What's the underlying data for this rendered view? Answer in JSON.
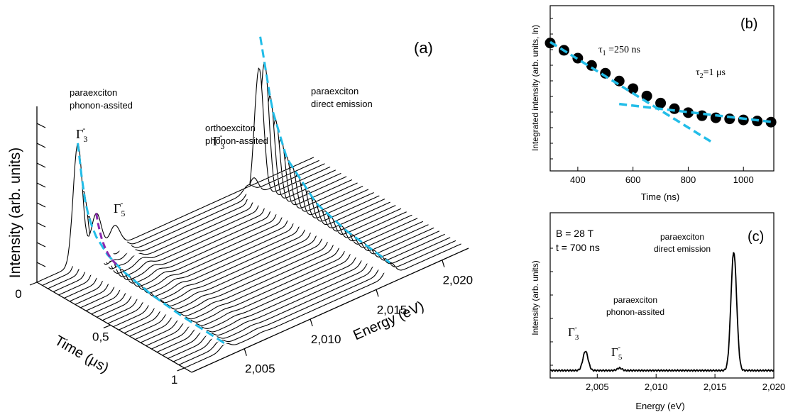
{
  "panel_a": {
    "panel_label": "(a)",
    "ylabel": "Intensity (arb. units)",
    "time_axis_label": "Time (μs)",
    "energy_axis_label": "Energy (eV)",
    "time_ticks": [
      "0",
      "0,5",
      "1"
    ],
    "energy_ticks": [
      "2,005",
      "2,010",
      "2,015",
      "2,020"
    ],
    "annotations": {
      "para_phonon": [
        "paraexciton",
        "phonon-assited"
      ],
      "ortho_phonon": [
        "orthoexciton",
        "phonon-assited"
      ],
      "para_direct": [
        "paraexciton",
        "direct emission"
      ],
      "gamma3_left": "Γ3-",
      "gamma5": "Γ5-",
      "gamma3_ortho": "Γ3-"
    }
  },
  "panel_b": {
    "panel_label": "(b)",
    "ylabel": "Integrated intensity (arb. units, ln)",
    "xlabel": "Time (ns)",
    "x_ticks": [
      "400",
      "600",
      "800",
      "1000"
    ],
    "tau1": "τ1 =250 ns",
    "tau2": "τ2=1 μs"
  },
  "panel_c": {
    "panel_label": "(c)",
    "ylabel": "Intensity (arb. units)",
    "xlabel": "Energy (eV)",
    "x_ticks": [
      "2,005",
      "2,010",
      "2,015",
      "2,020"
    ],
    "conditions": [
      "B = 28 T",
      "t = 700 ns"
    ],
    "peak_label": [
      "paraexciton",
      "direct emission"
    ],
    "phonon_label": [
      "paraexciton",
      "phonon-assited"
    ],
    "gamma3": "Γ3-",
    "gamma5": "Γ5-"
  },
  "colors": {
    "fit": "#22bde8",
    "ortho_fit": "#8a2bb0",
    "line": "#000000"
  },
  "chart_data": [
    {
      "type": "line",
      "panel": "(a)",
      "description_of_axes": "waterfall: x = energy, depth = time, z = intensity",
      "xlabel": "Energy (eV)",
      "ylabel": "Intensity (arb. units)",
      "zlabel": "Time (μs)",
      "xlim": [
        2.001,
        2.022
      ],
      "time_lim": [
        0,
        1.05
      ],
      "n_traces": 28,
      "peaks": [
        {
          "name": "Γ3- paraexciton phonon-assisted",
          "energy": 2.0041
        },
        {
          "name": "Γ5-",
          "energy": 2.0069
        },
        {
          "name": "Γ3- orthoexciton phonon-assisted",
          "energy": 2.0055
        },
        {
          "name": "paraexciton direct emission",
          "energy": 2.0166
        }
      ],
      "peak_height_vs_time": {
        "time_us": [
          0.0,
          0.04,
          0.08,
          0.12,
          0.2,
          0.3,
          0.5,
          0.7,
          1.0
        ],
        "para_phonon_relative": [
          1.0,
          0.6,
          0.42,
          0.32,
          0.22,
          0.16,
          0.1,
          0.07,
          0.05
        ],
        "para_direct_relative": [
          0.0,
          0.05,
          0.12,
          1.0,
          0.6,
          0.35,
          0.18,
          0.12,
          0.08
        ]
      }
    },
    {
      "type": "scatter",
      "panel": "(b)",
      "xlabel": "Time (ns)",
      "ylabel": "Integrated intensity (arb. units, ln)",
      "xlim": [
        300,
        1110
      ],
      "log_y": true,
      "x": [
        300,
        350,
        400,
        450,
        500,
        550,
        600,
        650,
        700,
        750,
        800,
        850,
        900,
        950,
        1000,
        1050,
        1100
      ],
      "y": [
        1.0,
        0.93,
        0.86,
        0.8,
        0.74,
        0.685,
        0.635,
        0.59,
        0.55,
        0.52,
        0.5,
        0.485,
        0.475,
        0.47,
        0.465,
        0.46,
        0.455
      ],
      "series": [
        {
          "name": "τ1 =250 ns",
          "fit": "exponential",
          "x_range": [
            300,
            890
          ]
        },
        {
          "name": "τ2=1 μs",
          "fit": "exponential",
          "x_range": [
            550,
            1110
          ]
        }
      ]
    },
    {
      "type": "line",
      "panel": "(c)",
      "xlabel": "Energy (eV)",
      "ylabel": "Intensity (arb. units)",
      "xlim": [
        2.001,
        2.02
      ],
      "x": [
        2.001,
        2.0025,
        2.0035,
        2.0038,
        2.004,
        2.0042,
        2.0045,
        2.005,
        2.006,
        2.0068,
        2.007,
        2.0072,
        2.008,
        2.01,
        2.012,
        2.014,
        2.015,
        2.0158,
        2.0163,
        2.0166,
        2.0169,
        2.0174,
        2.018,
        2.019,
        2.02
      ],
      "y": [
        0.02,
        0.015,
        0.03,
        0.12,
        0.17,
        0.12,
        0.05,
        0.02,
        0.015,
        0.025,
        0.03,
        0.02,
        0.02,
        0.015,
        0.015,
        0.02,
        0.03,
        0.1,
        0.55,
        1.0,
        0.6,
        0.12,
        0.04,
        0.02,
        0.015
      ]
    }
  ]
}
